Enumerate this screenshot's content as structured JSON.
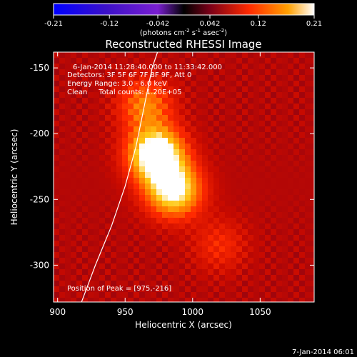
{
  "chart_data": {
    "type": "heatmap",
    "title": "Reconstructed RHESSI Image",
    "xlabel": "Heliocentric X (arcsec)",
    "ylabel": "Heliocentric Y (arcsec)",
    "xlim": [
      897,
      1090
    ],
    "ylim": [
      -328,
      -138
    ],
    "x_ticks": [
      {
        "value": 900,
        "label": "900"
      },
      {
        "value": 950,
        "label": "950"
      },
      {
        "value": 1000,
        "label": "1000"
      },
      {
        "value": 1050,
        "label": "1050"
      }
    ],
    "y_ticks": [
      {
        "value": -150,
        "label": "-150"
      },
      {
        "value": -200,
        "label": "-200"
      },
      {
        "value": -250,
        "label": "-250"
      },
      {
        "value": -300,
        "label": "-300"
      }
    ],
    "colorbar": {
      "min": -0.21,
      "max": 0.21,
      "tick_values": [
        -0.21,
        -0.12,
        -0.042,
        0.042,
        0.12,
        0.21
      ],
      "tick_labels": [
        "-0.21",
        "-0.12",
        "-0.042",
        "0.042",
        "0.12",
        "0.21"
      ],
      "unit_parts": {
        "a": "(photons cm",
        "b": "-2",
        "c": " s",
        "d": "-1",
        "e": " asec",
        "f": "-2",
        "g": ")"
      }
    },
    "annotations": {
      "time_range": "6-Jan-2014 11:28:40.000 to 11:33:42.000",
      "detectors": "Detectors: 3F 5F 6F 7F 8F 9F, Att 0",
      "energy": "Energy Range: 3.0 - 6.0 keV",
      "clean": "Clean     Total counts: 1.20E+05",
      "peak": "Position of Peak = [975,-216]"
    },
    "peak": [
      975,
      -216
    ],
    "sources": [
      {
        "x": 973,
        "y": -216,
        "amp": 0.21
      },
      {
        "x": 986,
        "y": -243,
        "amp": 0.17
      },
      {
        "x": 965,
        "y": -178,
        "amp": 0.09
      },
      {
        "x": 1020,
        "y": -285,
        "amp": 0.045
      }
    ],
    "limb_points": [
      [
        917,
        -330
      ],
      [
        928,
        -300
      ],
      [
        940,
        -270
      ],
      [
        950,
        -240
      ],
      [
        958,
        -210
      ],
      [
        964,
        -180
      ],
      [
        970,
        -150
      ],
      [
        974,
        -138
      ]
    ],
    "footer_date": "7-Jan-2014 06:01"
  }
}
